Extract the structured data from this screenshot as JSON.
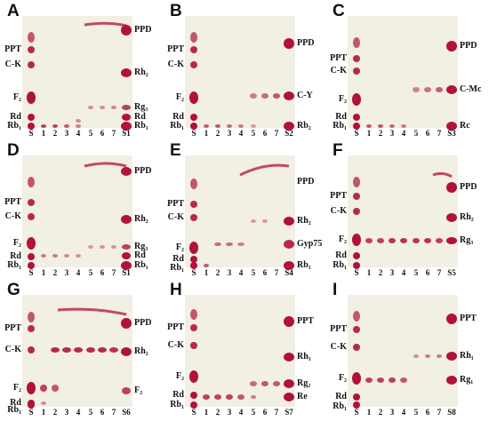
{
  "panels": [
    {
      "letter": "A",
      "left_labels": [
        {
          "text": "PPT",
          "y": 38
        },
        {
          "text": "C-K",
          "y": 55
        },
        {
          "text": "F₂",
          "y": 92
        },
        {
          "text": "Rd",
          "y": 114
        },
        {
          "text": "Rb₁",
          "y": 124
        }
      ],
      "right_labels": [
        {
          "text": "PPD",
          "y": 16
        },
        {
          "text": "Rh₂",
          "y": 64
        },
        {
          "text": "Rg₃",
          "y": 103
        },
        {
          "text": "Rd",
          "y": 114
        },
        {
          "text": "Rb₁",
          "y": 124
        }
      ],
      "lanes": [
        "S",
        "1",
        "2",
        "3",
        "4",
        "5",
        "6",
        "7",
        "S1"
      ]
    },
    {
      "letter": "B",
      "left_labels": [
        {
          "text": "PPT",
          "y": 38
        },
        {
          "text": "C-K",
          "y": 55
        },
        {
          "text": "F₂",
          "y": 92
        },
        {
          "text": "Rd",
          "y": 114
        },
        {
          "text": "Rb₁",
          "y": 124
        }
      ],
      "right_labels": [
        {
          "text": "PPD",
          "y": 31
        },
        {
          "text": "C-Y",
          "y": 90
        },
        {
          "text": "Rb₂",
          "y": 124
        }
      ],
      "lanes": [
        "S",
        "1",
        "2",
        "3",
        "4",
        "5",
        "6",
        "7",
        "S2"
      ]
    },
    {
      "letter": "C",
      "left_labels": [
        {
          "text": "PPT",
          "y": 48
        },
        {
          "text": "C-K",
          "y": 62
        },
        {
          "text": "F₂",
          "y": 94
        },
        {
          "text": "Rd",
          "y": 114
        },
        {
          "text": "Rb₁",
          "y": 124
        }
      ],
      "right_labels": [
        {
          "text": "PPD",
          "y": 34
        },
        {
          "text": "C-Mc",
          "y": 83
        },
        {
          "text": "Rc",
          "y": 124
        }
      ],
      "lanes": [
        "S",
        "1",
        "2",
        "3",
        "4",
        "5",
        "6",
        "7",
        "S3"
      ]
    },
    {
      "letter": "D",
      "left_labels": [
        {
          "text": "PPT",
          "y": 53
        },
        {
          "text": "C-K",
          "y": 69
        },
        {
          "text": "F₂",
          "y": 99
        },
        {
          "text": "Rd",
          "y": 114
        },
        {
          "text": "Rb₁",
          "y": 124
        }
      ],
      "right_labels": [
        {
          "text": "PPD",
          "y": 18
        },
        {
          "text": "Rh₂",
          "y": 72
        },
        {
          "text": "Rg₃",
          "y": 103
        },
        {
          "text": "Rd",
          "y": 113
        },
        {
          "text": "Rb₁",
          "y": 124
        }
      ],
      "lanes": [
        "S",
        "1",
        "2",
        "3",
        "4",
        "5",
        "6",
        "7",
        "S1"
      ]
    },
    {
      "letter": "E",
      "left_labels": [
        {
          "text": "PPT",
          "y": 55
        },
        {
          "text": "C-K",
          "y": 70
        },
        {
          "text": "F₂",
          "y": 104
        },
        {
          "text": "Rd",
          "y": 117
        },
        {
          "text": "Rb₁",
          "y": 127
        }
      ],
      "right_labels": [
        {
          "text": "PPD",
          "y": 30
        },
        {
          "text": "Rh₂",
          "y": 74
        },
        {
          "text": "Gyp75",
          "y": 100
        },
        {
          "text": "Rb₁",
          "y": 124
        }
      ],
      "lanes": [
        "S",
        "1",
        "2",
        "3",
        "4",
        "5",
        "6",
        "7",
        "S4"
      ]
    },
    {
      "letter": "F",
      "left_labels": [
        {
          "text": "PPT",
          "y": 46
        },
        {
          "text": "C-K",
          "y": 63
        },
        {
          "text": "F₂",
          "y": 95
        },
        {
          "text": "Rd",
          "y": 113
        },
        {
          "text": "Rb₁",
          "y": 124
        }
      ],
      "right_labels": [
        {
          "text": "PPD",
          "y": 36
        },
        {
          "text": "Rh₂",
          "y": 70
        },
        {
          "text": "Rg₃",
          "y": 96
        }
      ],
      "lanes": [
        "S",
        "1",
        "2",
        "3",
        "4",
        "5",
        "6",
        "7",
        "S5"
      ]
    },
    {
      "letter": "G",
      "left_labels": [
        {
          "text": "PPT",
          "y": 38
        },
        {
          "text": "C-K",
          "y": 62
        },
        {
          "text": "F₂",
          "y": 105
        },
        {
          "text": "Rd",
          "y": 122
        },
        {
          "text": "Rb₁",
          "y": 133
        }
      ],
      "right_labels": [
        {
          "text": "PPD",
          "y": 32
        },
        {
          "text": "Rh₂",
          "y": 64
        },
        {
          "text": "F₂",
          "y": 108
        }
      ],
      "lanes": [
        "S",
        "1",
        "2",
        "3",
        "4",
        "5",
        "6",
        "7",
        "S6"
      ]
    },
    {
      "letter": "H",
      "left_labels": [
        {
          "text": "PPT",
          "y": 37
        },
        {
          "text": "C-K",
          "y": 57
        },
        {
          "text": "F₂",
          "y": 92
        },
        {
          "text": "Rd",
          "y": 113
        },
        {
          "text": "Rb₁",
          "y": 124
        }
      ],
      "right_labels": [
        {
          "text": "PPT",
          "y": 30
        },
        {
          "text": "Rh₁",
          "y": 70
        },
        {
          "text": "Rg₂",
          "y": 100
        },
        {
          "text": "Re",
          "y": 115
        }
      ],
      "lanes": [
        "S",
        "1",
        "2",
        "3",
        "4",
        "5",
        "6",
        "7",
        "S7"
      ]
    },
    {
      "letter": "I",
      "left_labels": [
        {
          "text": "PPT",
          "y": 39
        },
        {
          "text": "C-K",
          "y": 59
        },
        {
          "text": "F₂",
          "y": 94
        },
        {
          "text": "Rd",
          "y": 115
        },
        {
          "text": "Rb₁",
          "y": 126
        }
      ],
      "right_labels": [
        {
          "text": "PPT",
          "y": 27
        },
        {
          "text": "Rh₁",
          "y": 69
        },
        {
          "text": "Rg₁",
          "y": 96
        }
      ],
      "lanes": [
        "S",
        "1",
        "2",
        "3",
        "4",
        "5",
        "6",
        "7",
        "S8"
      ]
    }
  ],
  "colors": {
    "plate": "#f2efe4",
    "spot": "#b0123a",
    "spot_faint": "#c98a96"
  }
}
